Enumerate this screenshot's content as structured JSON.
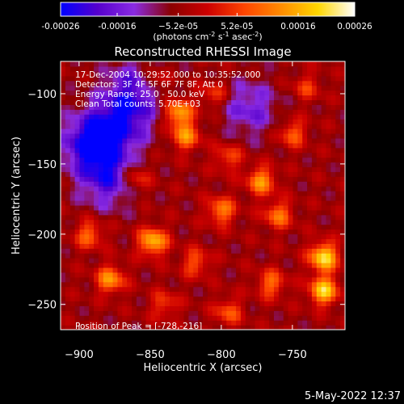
{
  "chart_data": {
    "type": "heatmap",
    "title": "Reconstructed RHESSI Image",
    "xlabel": "Heliocentric X (arcsec)",
    "ylabel": "Heliocentric Y (arcsec)",
    "xlim": [
      -913,
      -713
    ],
    "ylim": [
      -268,
      -77
    ],
    "x_ticks": [
      -900,
      -850,
      -800,
      -750
    ],
    "y_ticks": [
      -100,
      -150,
      -200,
      -250
    ],
    "x_tick_labels": [
      "−900",
      "−850",
      "−800",
      "−750"
    ],
    "y_tick_labels": [
      "−100",
      "−150",
      "−200",
      "−250"
    ],
    "colorbar": {
      "range": [
        -0.00026,
        0.00026
      ],
      "ticks": [
        -0.00026,
        -0.00016,
        -5.2e-05,
        5.2e-05,
        0.00016,
        0.00026
      ],
      "tick_labels": [
        "-0.00026",
        "-0.00016",
        "−5.2e-05",
        "5.2e-05",
        "0.00016",
        "0.00026"
      ],
      "unit_prefix": "(photons cm",
      "unit_exp1": "-2",
      "unit_mid1": " s",
      "unit_exp2": "-1",
      "unit_mid2": " asec",
      "unit_exp3": "-2",
      "unit_suffix": ")",
      "colors": [
        "#0000ff",
        "#5500cc",
        "#8a2be2",
        "#8b0000",
        "#cc0000",
        "#ff4500",
        "#ff8c00",
        "#ffd700",
        "#ffffff"
      ]
    },
    "info_lines": [
      "17-Dec-2004 10:29:52.000 to 10:35:52.000",
      "Detectors: 3F 4F 5F 6F 7F 8F, Att 0",
      "Energy Range: 25.0 - 50.0 keV",
      "Clean     Total counts: 5.70E+03"
    ],
    "peak_label": "Position of Peak = [-728,-216]",
    "peak": [
      -728,
      -216
    ],
    "blobs": [
      {
        "x": -728,
        "y": -216,
        "v": 0.00026
      },
      {
        "x": -728,
        "y": -240,
        "v": 0.00024
      },
      {
        "x": -830,
        "y": -113,
        "v": 0.0002
      },
      {
        "x": -825,
        "y": -130,
        "v": 0.00017
      },
      {
        "x": -848,
        "y": -205,
        "v": 0.00022
      },
      {
        "x": -878,
        "y": -232,
        "v": 0.00018
      },
      {
        "x": -893,
        "y": -200,
        "v": 0.00014
      },
      {
        "x": -860,
        "y": -160,
        "v": 0.00012
      },
      {
        "x": -847,
        "y": -90,
        "v": 0.00012
      },
      {
        "x": -800,
        "y": -183,
        "v": 0.00016
      },
      {
        "x": -772,
        "y": -162,
        "v": 0.00018
      },
      {
        "x": -760,
        "y": -186,
        "v": 0.00015
      },
      {
        "x": -750,
        "y": -128,
        "v": 0.00013
      },
      {
        "x": -818,
        "y": -220,
        "v": 0.00012
      },
      {
        "x": -795,
        "y": -255,
        "v": 0.00012
      },
      {
        "x": -765,
        "y": -235,
        "v": 0.00014
      },
      {
        "x": -840,
        "y": -250,
        "v": 0.0001
      },
      {
        "x": -795,
        "y": -145,
        "v": 0.00011
      },
      {
        "x": -740,
        "y": -95,
        "v": 9e-05
      },
      {
        "x": -805,
        "y": -100,
        "v": 0.0001
      }
    ],
    "negatives": [
      {
        "x": -890,
        "y": -135,
        "v": -0.00026
      },
      {
        "x": -870,
        "y": -118,
        "v": -0.00018
      },
      {
        "x": -880,
        "y": -160,
        "v": -0.00016
      },
      {
        "x": -780,
        "y": -110,
        "v": -0.00012
      },
      {
        "x": -860,
        "y": -95,
        "v": -0.00014
      }
    ],
    "grid": false
  },
  "timestamp": "5-May-2022 12:37"
}
